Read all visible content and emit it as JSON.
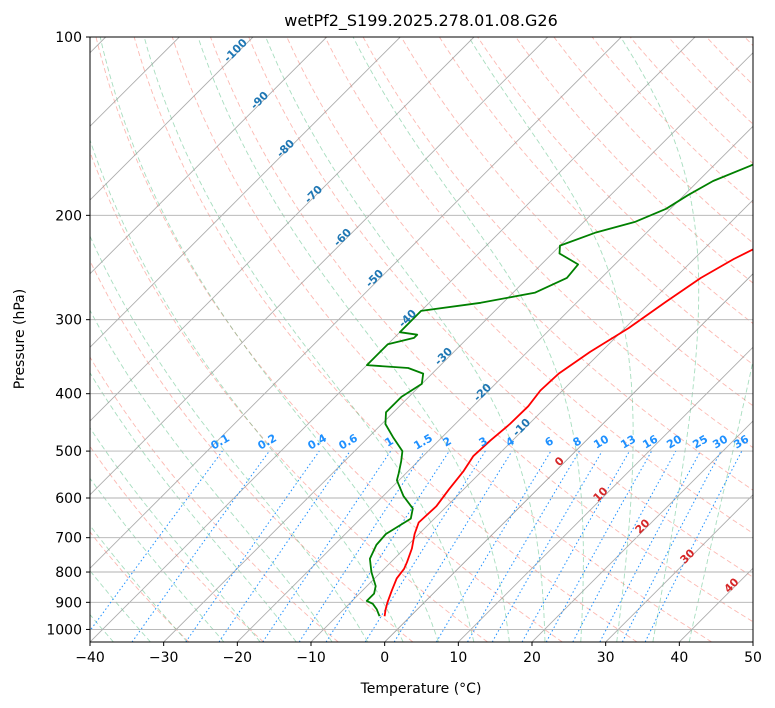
{
  "chart_data": {
    "type": "line",
    "title": "wetPf2_S199.2025.278.01.08.G26",
    "xlabel": "Temperature (°C)",
    "ylabel": "Pressure (hPa)",
    "xlim": [
      -40,
      50
    ],
    "ylim": [
      1050,
      100
    ],
    "y_scale": "log",
    "x_ticks": [
      -40,
      -30,
      -20,
      -10,
      0,
      10,
      20,
      30,
      40,
      50
    ],
    "y_ticks": [
      1000,
      900,
      800,
      700,
      600,
      500,
      400,
      300,
      200,
      100
    ],
    "grid": true,
    "series": [
      {
        "color": "#ff0000",
        "points": [
          [
            -3.5,
            950
          ],
          [
            -4.3,
            925
          ],
          [
            -5.0,
            900
          ],
          [
            -6.0,
            860
          ],
          [
            -7.0,
            820
          ],
          [
            -7.3,
            790
          ],
          [
            -7.8,
            770
          ],
          [
            -9.0,
            730
          ],
          [
            -10.6,
            690
          ],
          [
            -11.6,
            660
          ],
          [
            -11.4,
            620
          ],
          [
            -12.0,
            580
          ],
          [
            -12.5,
            540
          ],
          [
            -13.2,
            510
          ],
          [
            -13.0,
            480
          ],
          [
            -12.6,
            450
          ],
          [
            -12.5,
            420
          ],
          [
            -13.0,
            395
          ],
          [
            -12.8,
            370
          ],
          [
            -11.5,
            340
          ],
          [
            -9.5,
            310
          ],
          [
            -8.0,
            280
          ],
          [
            -6.5,
            255
          ],
          [
            -4.6,
            237
          ],
          [
            -2.0,
            220
          ],
          [
            0.5,
            205
          ],
          [
            2.5,
            195
          ],
          [
            4.5,
            180
          ],
          [
            6.6,
            164
          ],
          [
            7.5,
            152
          ],
          [
            8.0,
            142
          ],
          [
            8.8,
            132
          ],
          [
            10.8,
            122
          ],
          [
            13.5,
            113
          ],
          [
            16.5,
            106
          ],
          [
            18.5,
            100
          ]
        ]
      },
      {
        "color": "#008000",
        "points": [
          [
            -4.2,
            950
          ],
          [
            -5.5,
            925
          ],
          [
            -6.8,
            905
          ],
          [
            -8.0,
            895
          ],
          [
            -8.0,
            870
          ],
          [
            -8.8,
            845
          ],
          [
            -11.3,
            800
          ],
          [
            -13.3,
            760
          ],
          [
            -14.3,
            720
          ],
          [
            -14.5,
            690
          ],
          [
            -13.7,
            665
          ],
          [
            -13.2,
            650
          ],
          [
            -14.3,
            625
          ],
          [
            -17.3,
            595
          ],
          [
            -20.3,
            560
          ],
          [
            -21.0,
            545
          ],
          [
            -22.3,
            520
          ],
          [
            -23.5,
            500
          ],
          [
            -26.5,
            475
          ],
          [
            -29.5,
            450
          ],
          [
            -31.0,
            430
          ],
          [
            -31.0,
            405
          ],
          [
            -30.0,
            385
          ],
          [
            -31.2,
            370
          ],
          [
            -34.0,
            362
          ],
          [
            -40.0,
            358
          ],
          [
            -40.0,
            330
          ],
          [
            -37.3,
            322
          ],
          [
            -37.3,
            318
          ],
          [
            -40.0,
            315
          ],
          [
            -40.0,
            290
          ],
          [
            -33.0,
            281
          ],
          [
            -27.0,
            270
          ],
          [
            -24.7,
            255
          ],
          [
            -25.0,
            242
          ],
          [
            -29.0,
            232
          ],
          [
            -30.0,
            225
          ],
          [
            -27.0,
            214
          ],
          [
            -23.0,
            205
          ],
          [
            -20.6,
            195
          ],
          [
            -19.5,
            185
          ],
          [
            -18.0,
            175
          ],
          [
            -15.0,
            165
          ],
          [
            -12.5,
            155
          ],
          [
            -10.0,
            145
          ],
          [
            -7.5,
            135
          ],
          [
            -4.5,
            125
          ],
          [
            -1.0,
            116
          ],
          [
            0.5,
            110
          ],
          [
            1.5,
            105
          ],
          [
            2.0,
            100
          ]
        ]
      }
    ],
    "isotherm_labels": [
      "-100",
      "-90",
      "-80",
      "-70",
      "-60",
      "-50",
      "-40",
      "-30",
      "-20",
      "-10",
      "0",
      "10",
      "20",
      "30",
      "40"
    ],
    "mixing_ratio_labels": [
      "0.1",
      "0.2",
      "0.4",
      "0.6",
      "1",
      "1.5",
      "2",
      "3",
      "4",
      "6",
      "8",
      "10",
      "13",
      "16",
      "20",
      "25",
      "30",
      "36"
    ],
    "mixing_ratio_values": [
      0.1,
      0.2,
      0.4,
      0.6,
      1,
      1.5,
      2,
      3,
      4,
      6,
      8,
      10,
      13,
      16,
      20,
      25,
      30,
      36
    ]
  }
}
